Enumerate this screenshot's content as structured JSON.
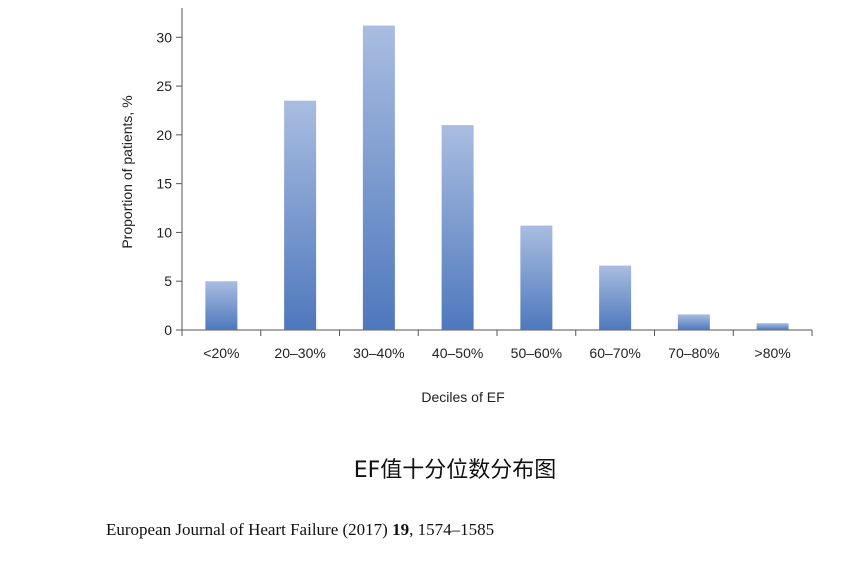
{
  "chart_data": {
    "type": "bar",
    "categories": [
      "<20%",
      "20–30%",
      "30–40%",
      "40–50%",
      "50–60%",
      "60–70%",
      "70–80%",
      ">80%"
    ],
    "values": [
      5.0,
      23.5,
      31.2,
      21.0,
      10.7,
      6.6,
      1.6,
      0.7
    ],
    "xlabel": "Deciles of EF",
    "ylabel": "Proportion of patients, %",
    "ylim": [
      0,
      33
    ],
    "yticks": [
      0,
      5,
      10,
      15,
      20,
      25,
      30
    ],
    "grid": false,
    "colors": {
      "bar_top": "#a9bde0",
      "bar_bottom": "#4e78bd"
    }
  },
  "caption": "EF值十分位数分布图",
  "citation": {
    "journal": "European Journal of Heart Failure (2017)",
    "volume": "19",
    "pages": ", 1574–1585"
  }
}
